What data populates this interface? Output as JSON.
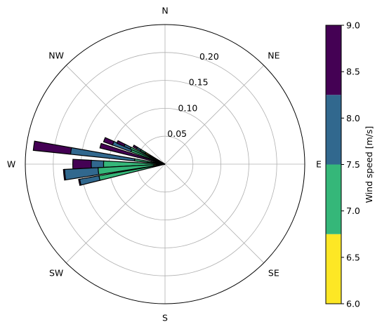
{
  "chart_data": {
    "type": "windrose",
    "directions": [
      {
        "label": "N",
        "deg": 0
      },
      {
        "label": "NE",
        "deg": 45
      },
      {
        "label": "E",
        "deg": 90
      },
      {
        "label": "SE",
        "deg": 135
      },
      {
        "label": "S",
        "deg": 180
      },
      {
        "label": "SW",
        "deg": 225
      },
      {
        "label": "W",
        "deg": 270
      },
      {
        "label": "NW",
        "deg": 315
      }
    ],
    "radial_ticks": [
      {
        "value": 0.05,
        "label": "0.05"
      },
      {
        "value": 0.1,
        "label": "0.10"
      },
      {
        "value": 0.15,
        "label": "0.15"
      },
      {
        "value": 0.2,
        "label": "0.20"
      }
    ],
    "radial_max": 0.25,
    "bins": [
      {
        "range": [
          6.0,
          6.75
        ],
        "color": "#fde725"
      },
      {
        "range": [
          6.75,
          7.5
        ],
        "color": "#35b779"
      },
      {
        "range": [
          7.5,
          8.25
        ],
        "color": "#31688e"
      },
      {
        "range": [
          8.25,
          9.0
        ],
        "color": "#440154"
      }
    ],
    "sectors": [
      {
        "deg": 286,
        "width": 4,
        "cum": [
          0.004,
          0.012,
          0.025,
          0.12
        ]
      },
      {
        "deg": 278,
        "width": 4,
        "cum": [
          0.008,
          0.055,
          0.17,
          0.237
        ]
      },
      {
        "deg": 270,
        "width": 6,
        "cum": [
          0.015,
          0.11,
          0.132,
          0.165
        ]
      },
      {
        "deg": 264,
        "width": 6,
        "cum": [
          0.02,
          0.12,
          0.18,
          0.182
        ]
      },
      {
        "deg": 258,
        "width": 4,
        "cum": [
          0.01,
          0.12,
          0.155,
          0.157
        ]
      },
      {
        "deg": 292,
        "width": 4,
        "cum": [
          0.012,
          0.065,
          0.1,
          0.117
        ]
      },
      {
        "deg": 295,
        "width": 3,
        "cum": [
          0.03,
          0.068,
          0.08,
          0.094
        ]
      },
      {
        "deg": 300,
        "width": 3,
        "cum": [
          0.04,
          0.05,
          0.058,
          0.065
        ]
      }
    ],
    "colorbar": {
      "label": "Wind speed [m/s]",
      "min": 6.0,
      "max": 9.0,
      "ticks": [
        "6.0",
        "6.5",
        "7.0",
        "7.5",
        "8.0",
        "8.5",
        "9.0"
      ],
      "tick_values": [
        6.0,
        6.5,
        7.0,
        7.5,
        8.0,
        8.5,
        9.0
      ]
    },
    "grid": true
  }
}
